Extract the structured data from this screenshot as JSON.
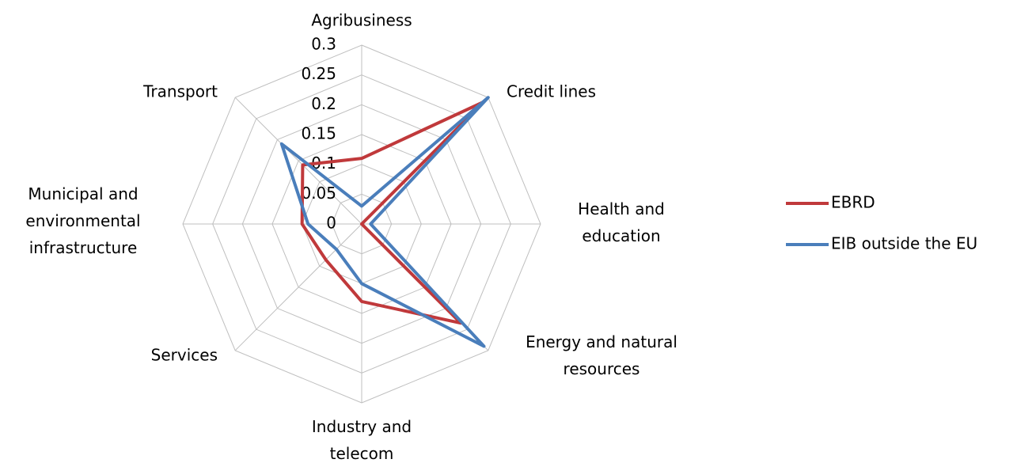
{
  "chart_data": {
    "type": "radar",
    "categories": [
      "Agribusiness",
      "Credit lines",
      "Health and\neducation",
      "Energy and natural\nresources",
      "Industry and\ntelecom",
      "Services",
      "Municipal and\nenvironmental\ninfrastructure",
      "Transport"
    ],
    "series": [
      {
        "name": "EBRD",
        "color": "#c0393b",
        "values": [
          0.11,
          0.29,
          0.0,
          0.235,
          0.13,
          0.085,
          0.1,
          0.14
        ]
      },
      {
        "name": "EIB outside the EU",
        "color": "#4a7ebb",
        "values": [
          0.03,
          0.3,
          0.015,
          0.29,
          0.1,
          0.06,
          0.09,
          0.19
        ]
      }
    ],
    "ylim": [
      0,
      0.3
    ],
    "yticks": [
      0,
      0.05,
      0.1,
      0.15,
      0.2,
      0.25,
      0.3
    ],
    "grid": true,
    "legend": "right"
  }
}
